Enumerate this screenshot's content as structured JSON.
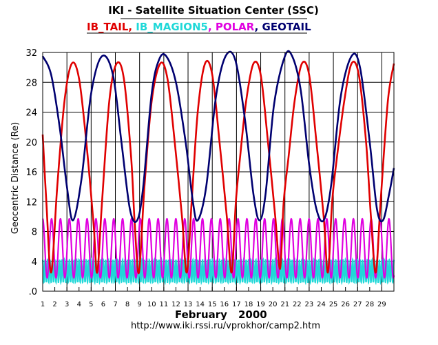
{
  "chart_data": {
    "type": "line",
    "title": "IKI - Satellite Situation Center (SSC)",
    "legend": [
      {
        "label": "IB_TAIL",
        "color": "#e00000"
      },
      {
        "label": "IB_MAGION5",
        "color": "#20d8d8"
      },
      {
        "label": "POLAR",
        "color": "#e000e0"
      },
      {
        "label": "GEOTAIL",
        "color": "#000070"
      }
    ],
    "legend_separators": [
      ", ",
      ", ",
      ", "
    ],
    "ylabel": "Geocentric Distance (Re)",
    "xlabel_month": "February",
    "xlabel_year": "2000",
    "url": "http://www.iki.rssi.ru/vprokhor/camp2.htm",
    "xlim": [
      1,
      30
    ],
    "ylim": [
      0,
      32
    ],
    "yticks": [
      ".0",
      "4",
      "8",
      "12",
      "16",
      "20",
      "24",
      "28",
      "32"
    ],
    "xticks": [
      "1",
      "2",
      "3",
      "4",
      "5",
      "6",
      "7",
      "8",
      "9",
      "10",
      "11",
      "12",
      "13",
      "14",
      "15",
      "16",
      "17",
      "18",
      "19",
      "20",
      "21",
      "22",
      "23",
      "24",
      "25",
      "26",
      "27",
      "28",
      "29"
    ],
    "grid": true,
    "series": [
      {
        "name": "IB_TAIL",
        "color": "#e00000",
        "x": [
          1.0,
          1.3,
          1.7,
          2.2,
          2.8,
          3.4,
          4.0,
          4.6,
          5.2,
          5.5,
          5.9,
          6.5,
          7.1,
          7.7,
          8.3,
          8.6,
          8.95,
          9.4,
          10.0,
          10.7,
          11.3,
          11.9,
          12.5,
          12.9,
          13.3,
          13.8,
          14.4,
          15.0,
          15.6,
          16.2,
          16.6,
          16.95,
          17.3,
          17.8,
          18.4,
          19.0,
          19.6,
          20.2,
          20.6,
          20.9,
          21.3,
          21.8,
          22.4,
          23.0,
          23.6,
          24.2,
          24.55,
          24.9,
          25.3,
          25.9,
          26.5,
          27.1,
          27.7,
          28.1,
          28.5,
          28.9,
          29.5,
          30.0
        ],
        "y": [
          21.0,
          12.0,
          2.5,
          14.0,
          25.5,
          30.5,
          28.5,
          20.0,
          9.0,
          2.5,
          12.0,
          25.5,
          30.5,
          28.5,
          18.0,
          9.0,
          2.5,
          14.0,
          25.5,
          30.5,
          28.5,
          20.0,
          10.0,
          2.5,
          12.0,
          24.0,
          30.5,
          29.0,
          20.0,
          10.0,
          2.5,
          12.0,
          18.0,
          25.5,
          30.5,
          29.0,
          20.0,
          10.0,
          3.0,
          12.0,
          18.0,
          25.5,
          30.5,
          29.0,
          20.0,
          10.0,
          2.5,
          12.0,
          18.0,
          25.5,
          30.5,
          29.0,
          20.0,
          10.0,
          2.5,
          12.0,
          25.5,
          30.5
        ]
      },
      {
        "name": "GEOTAIL",
        "color": "#000070",
        "x": [
          1.0,
          1.7,
          2.4,
          3.0,
          3.5,
          4.2,
          5.0,
          5.9,
          6.8,
          7.5,
          8.2,
          8.8,
          9.3,
          10.0,
          10.6,
          11.2,
          12.0,
          12.8,
          13.4,
          13.8,
          14.5,
          15.3,
          16.1,
          16.9,
          17.7,
          18.4,
          18.9,
          19.4,
          20.1,
          21.0,
          21.6,
          22.3,
          23.0,
          23.6,
          24.2,
          24.8,
          25.6,
          26.5,
          27.2,
          28.0,
          28.6,
          29.1,
          29.6,
          30.0
        ],
        "y": [
          31.5,
          29.0,
          22.0,
          14.0,
          9.5,
          15.0,
          26.5,
          31.5,
          29.0,
          20.0,
          11.0,
          9.5,
          14.0,
          26.5,
          31.0,
          31.5,
          28.0,
          20.0,
          12.0,
          9.5,
          14.0,
          26.0,
          31.5,
          31.0,
          23.0,
          13.0,
          9.5,
          13.0,
          25.0,
          31.5,
          31.5,
          27.0,
          17.0,
          11.0,
          9.5,
          14.0,
          26.0,
          31.5,
          30.0,
          20.0,
          11.0,
          9.5,
          13.0,
          16.5
        ]
      },
      {
        "name": "POLAR",
        "color": "#e000e0",
        "oscillation": {
          "min": 1.8,
          "max": 9.7,
          "period_days": 0.733
        }
      },
      {
        "name": "IB_MAGION5",
        "color": "#20d8d8",
        "oscillation": {
          "min": 1.2,
          "max": 4.2,
          "period_days": 0.2
        }
      }
    ]
  }
}
